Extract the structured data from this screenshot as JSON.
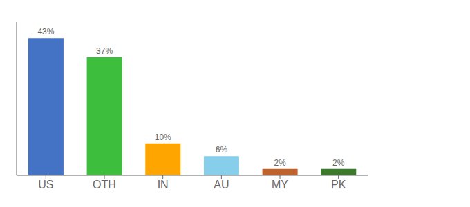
{
  "chart_data": {
    "type": "bar",
    "categories": [
      "US",
      "OTH",
      "IN",
      "AU",
      "MY",
      "PK"
    ],
    "values": [
      43,
      37,
      10,
      6,
      2,
      2
    ],
    "value_labels": [
      "43%",
      "37%",
      "10%",
      "6%",
      "2%",
      "2%"
    ],
    "colors": [
      "#4472C4",
      "#3DBF3D",
      "#FFA500",
      "#87CEEB",
      "#C0622B",
      "#3A7A2A"
    ],
    "ylim": [
      0,
      48
    ],
    "data_labels": true,
    "tick_labels": "x",
    "grid": false
  }
}
